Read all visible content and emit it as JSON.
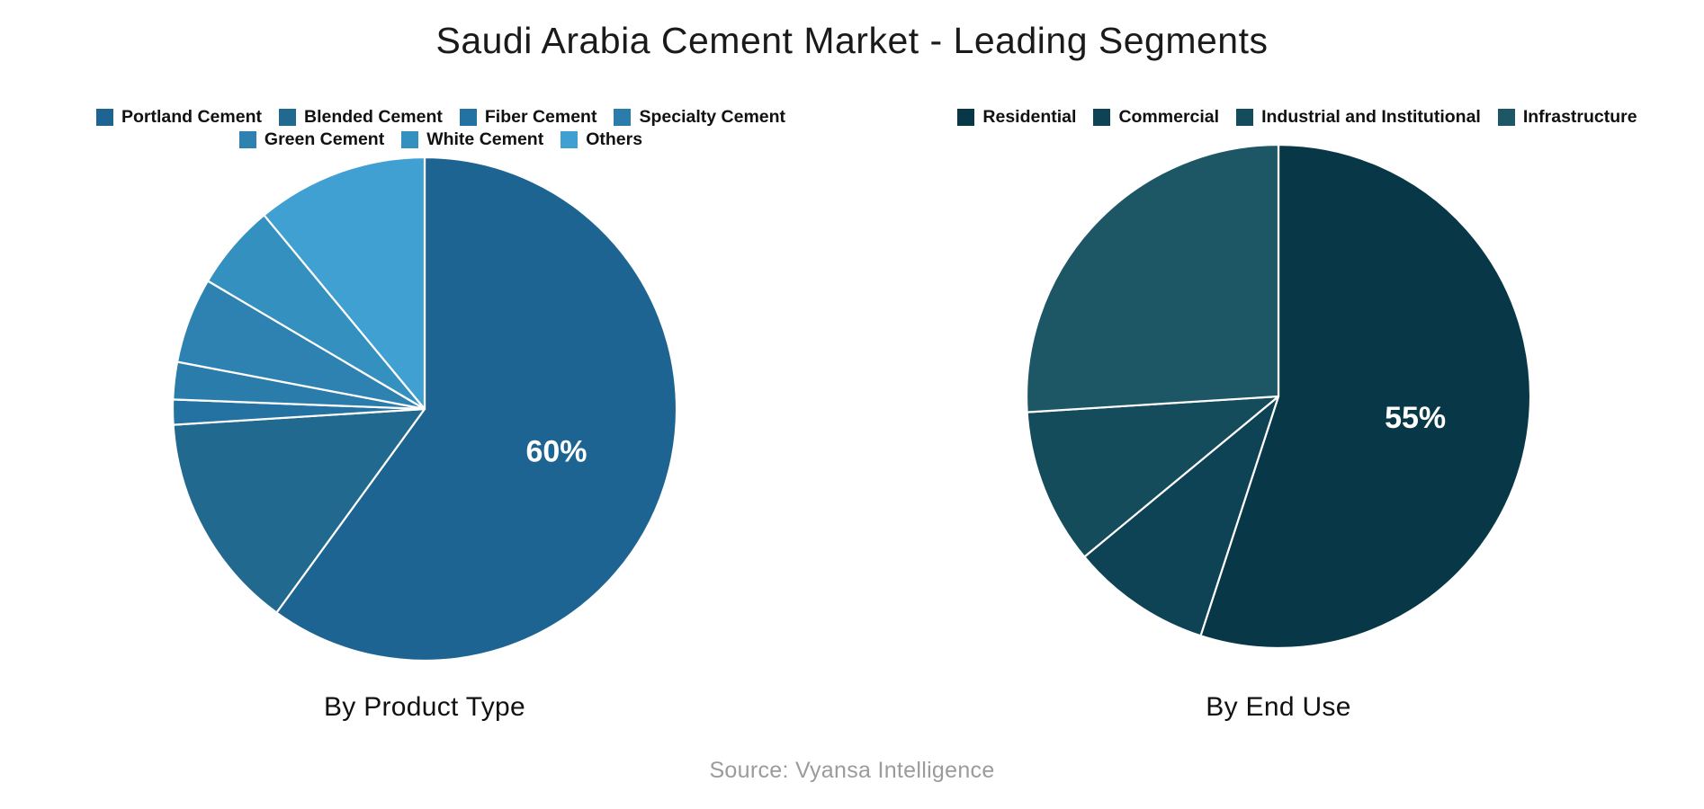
{
  "title": "Saudi Arabia Cement Market - Leading Segments",
  "source": "Source: Vyansa Intelligence",
  "chart_data": [
    {
      "type": "pie",
      "caption": "By Product Type",
      "direction": "clockwise",
      "start_angle": "12-o-clock",
      "legend_position": "top",
      "labels": [
        "Portland Cement",
        "Blended Cement",
        "Fiber Cement",
        "Specialty Cement",
        "Green Cement",
        "White Cement",
        "Others"
      ],
      "values": [
        60,
        14,
        1.6,
        2.4,
        5.5,
        5.5,
        11
      ],
      "displayed_labels": [
        "60%",
        "",
        "",
        "",
        "",
        "",
        ""
      ],
      "colors": [
        "#1d6493",
        "#21698f",
        "#2472a2",
        "#2a7cab",
        "#2e82b1",
        "#3490be",
        "#41a0d2"
      ],
      "legend_rows": [
        [
          0,
          1,
          2,
          3
        ],
        [
          4,
          5,
          6
        ]
      ]
    },
    {
      "type": "pie",
      "caption": "By End Use",
      "direction": "clockwise",
      "start_angle": "12-o-clock",
      "legend_position": "top",
      "labels": [
        "Residential",
        "Commercial",
        "Industrial and Institutional",
        "Infrastructure"
      ],
      "values": [
        55,
        9,
        10,
        26
      ],
      "displayed_labels": [
        "55%",
        "",
        "",
        ""
      ],
      "colors": [
        "#083847",
        "#0d4354",
        "#144c5c",
        "#1d5766"
      ],
      "legend_rows": [
        [
          0,
          1,
          2,
          3
        ]
      ]
    }
  ]
}
